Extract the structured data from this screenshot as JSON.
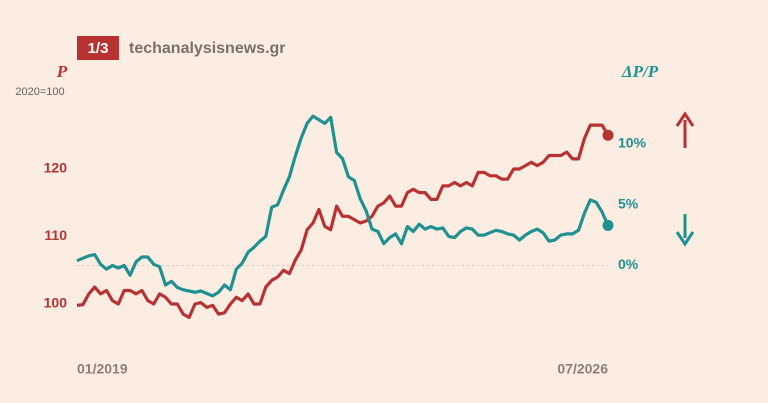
{
  "chart_data": {
    "type": "line",
    "badge": "1/3",
    "site": "techanalysisnews.gr",
    "ylabel": "P",
    "ylabel_note": "2020=100",
    "y2label": "ΔP/P",
    "categories": [
      "01/2019",
      null,
      null,
      null,
      null,
      null,
      null,
      null,
      null,
      null,
      null,
      null,
      null,
      null,
      null,
      null,
      null,
      null,
      null,
      null,
      null,
      null,
      null,
      null,
      null,
      null,
      null,
      null,
      null,
      null,
      null,
      null,
      null,
      null,
      null,
      null,
      null,
      null,
      null,
      null,
      null,
      null,
      null,
      null,
      null,
      null,
      null,
      null,
      null,
      null,
      null,
      null,
      null,
      null,
      null,
      null,
      null,
      null,
      null,
      null,
      null,
      null,
      null,
      null,
      null,
      null,
      null,
      null,
      null,
      null,
      null,
      null,
      null,
      null,
      null,
      null,
      null,
      null,
      null,
      null,
      null,
      null,
      null,
      null,
      null,
      null,
      null,
      null,
      null,
      null,
      "07/2026"
    ],
    "ylim": [
      94,
      130
    ],
    "yticks": [
      100,
      110,
      120
    ],
    "y2lim": [
      -6.5,
      13.5
    ],
    "y2ticks": [
      {
        "value": 0,
        "label": "0%"
      },
      {
        "value": 5,
        "label": "5%"
      },
      {
        "value": 10,
        "label": "10%"
      }
    ],
    "series": [
      {
        "name": "P",
        "color": "#b83232",
        "values": [
          99.8,
          99.9,
          101.5,
          102.5,
          101.5,
          102,
          100.5,
          100,
          102,
          102,
          101.5,
          102,
          100.5,
          100,
          101.5,
          101,
          100,
          100,
          98.5,
          98,
          100,
          100.2,
          99.5,
          99.8,
          98.5,
          98.7,
          100,
          101,
          100.5,
          101.5,
          100,
          100,
          102.5,
          103.5,
          104,
          105,
          104.5,
          106.5,
          108,
          111,
          112,
          114,
          111.5,
          111,
          114.5,
          113,
          113,
          112.5,
          112,
          112.3,
          113,
          114.5,
          115,
          116,
          114.5,
          114.5,
          116.5,
          117,
          116.5,
          116.5,
          115.5,
          115.5,
          117.5,
          117.5,
          118,
          117.5,
          118,
          117.5,
          119.5,
          119.5,
          119,
          119,
          118.5,
          118.5,
          120,
          120,
          120.5,
          121,
          120.5,
          121,
          122,
          122,
          122,
          122.5,
          121.5,
          121.5,
          124.5,
          126.5,
          126.5,
          126.5,
          125
        ]
      },
      {
        "name": "ΔP/P",
        "color": "#1f9190",
        "axis": "y2",
        "values": [
          0.4,
          0.6,
          0.8,
          0.9,
          0.1,
          -0.3,
          0,
          -0.2,
          0,
          -0.8,
          0.3,
          0.7,
          0.7,
          0.1,
          -0.1,
          -1.6,
          -1.3,
          -1.8,
          -2,
          -2.1,
          -2.2,
          -2.1,
          -2.3,
          -2.5,
          -2.2,
          -1.6,
          -2,
          -0.3,
          0.2,
          1.1,
          1.5,
          2,
          2.4,
          4.8,
          5,
          6.2,
          7.3,
          9,
          10.5,
          11.7,
          12.3,
          12,
          11.7,
          12.2,
          9.3,
          8.8,
          7.3,
          7,
          5.5,
          4.5,
          3,
          2.8,
          1.8,
          2.3,
          2.6,
          1.8,
          3.2,
          2.8,
          3.4,
          3,
          3.2,
          3,
          3.1,
          2.4,
          2.3,
          2.8,
          3.1,
          3,
          2.5,
          2.5,
          2.7,
          2.9,
          2.8,
          2.6,
          2.5,
          2.1,
          2.5,
          2.8,
          3,
          2.7,
          2,
          2.1,
          2.5,
          2.6,
          2.6,
          2.9,
          4.3,
          5.4,
          5.2,
          4.4,
          3.3
        ]
      }
    ]
  }
}
